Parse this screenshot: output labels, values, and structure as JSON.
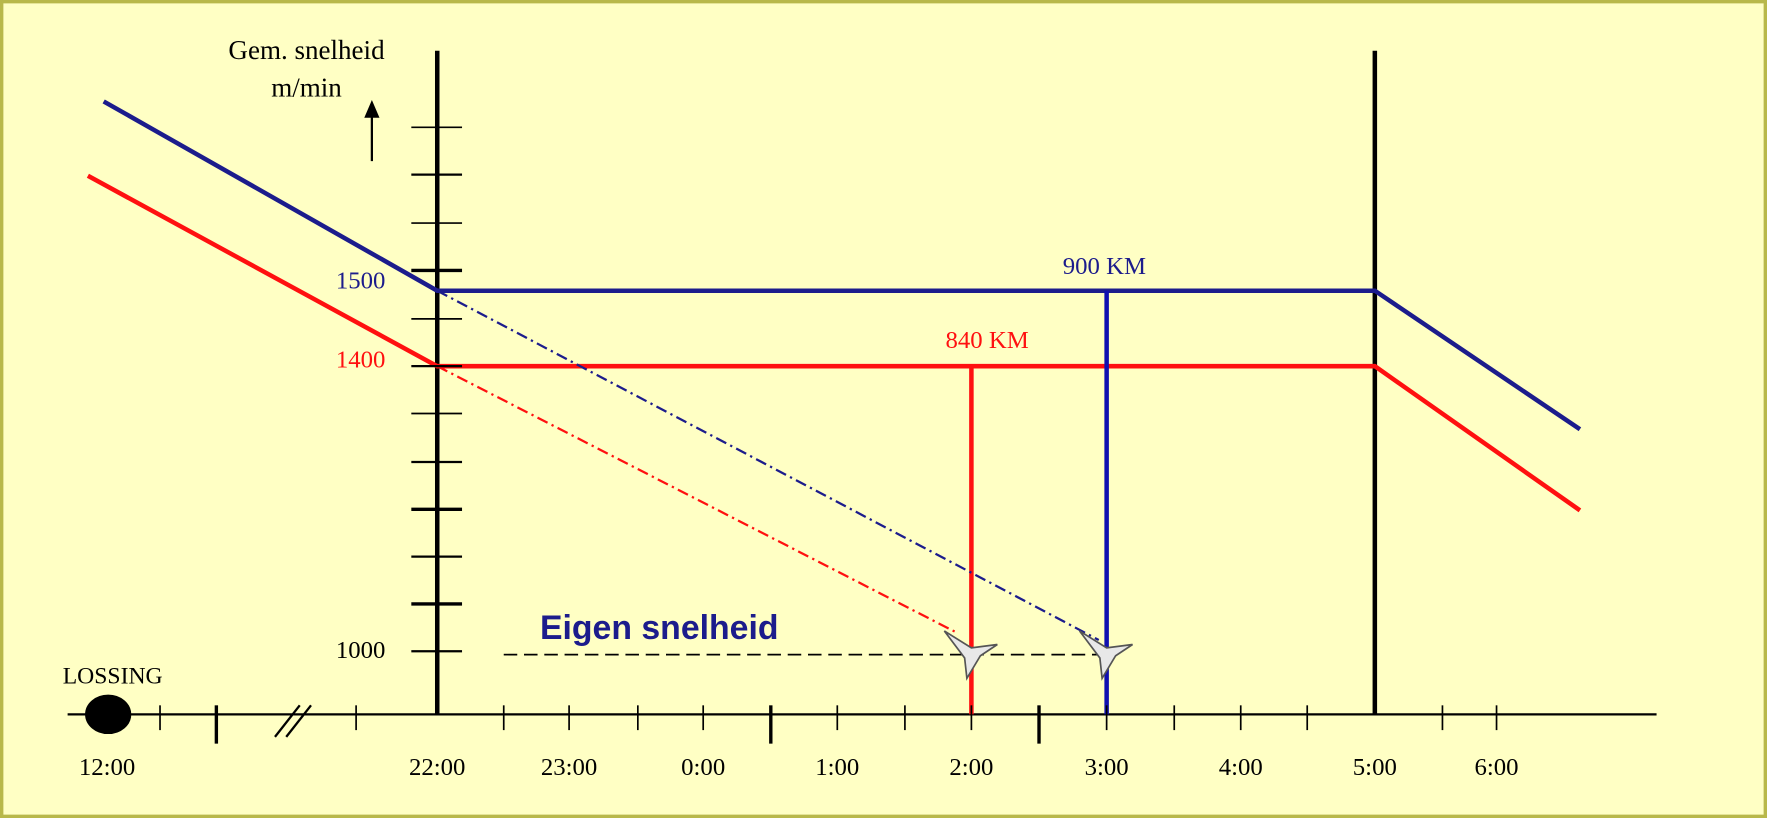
{
  "axis_title": [
    "Gem. snelheid",
    "m/min"
  ],
  "y_labels": [
    "1500",
    "1400",
    "1000"
  ],
  "time_labels": [
    "12:00",
    "22:00",
    "23:00",
    "0:00",
    "1:00",
    "2:00",
    "3:00",
    "4:00",
    "5:00",
    "6:00"
  ],
  "release_label": "LOSSING",
  "distance_labels": [
    "900 KM",
    "840 KM"
  ],
  "own_speed_label": "Eigen snelheid"
}
